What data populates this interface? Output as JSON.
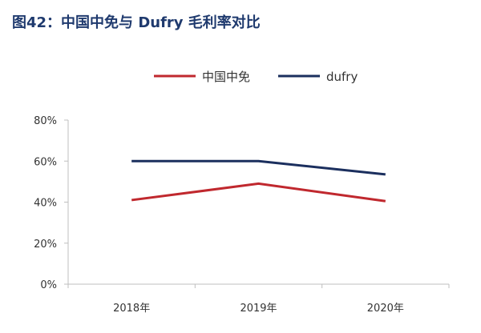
{
  "title": "图42：中国中免与 Dufry 毛利率对比",
  "chart_data": {
    "type": "line",
    "x": [
      "2018年",
      "2019年",
      "2020年"
    ],
    "series": [
      {
        "name": "中国中免",
        "color": "#c0282e",
        "values": [
          41,
          49,
          40.5
        ]
      },
      {
        "name": "dufry",
        "color": "#1b2f5e",
        "values": [
          60,
          60,
          53.5
        ]
      }
    ],
    "ylim": [
      0,
      80
    ],
    "yticks": [
      0,
      20,
      40,
      60,
      80
    ],
    "ytick_labels": [
      "0%",
      "20%",
      "40%",
      "60%",
      "80%"
    ],
    "legend": "top-center",
    "grid": false
  }
}
